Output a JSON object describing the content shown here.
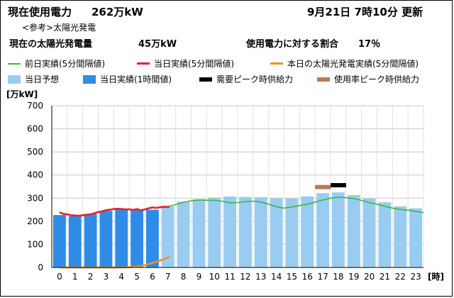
{
  "header": {
    "title": "現在使用電力",
    "current_usage": "262万kW",
    "date_time": "9月21日 7時10分 更新",
    "reference_label": "<参考>太陽光発電",
    "solar_label": "現在の太陽光発電量",
    "solar_value": "45万kW",
    "ratio_label": "使用電力に対する割合",
    "ratio_value": "17％"
  },
  "legend": {
    "items": [
      {
        "label": "前日実績(5分間隔値)",
        "color": "#3cb83c",
        "shape": "line"
      },
      {
        "label": "当日実績(5分間隔値)",
        "color": "#e8202a",
        "shape": "line"
      },
      {
        "label": "本日の太陽光発電実績(5分間隔値)",
        "color": "#f4901e",
        "shape": "line"
      },
      {
        "label": "当日予想",
        "color": "#99ccf0",
        "shape": "box"
      },
      {
        "label": "当日実績(1時間値)",
        "color": "#2f8ce6",
        "shape": "box"
      },
      {
        "label": "需要ピーク時供給力",
        "color": "#000000",
        "shape": "line"
      },
      {
        "label": "使用率ピーク時供給力",
        "color": "#b87a5a",
        "shape": "line"
      }
    ]
  },
  "chart_data": {
    "type": "bar",
    "ylabel": "[万kW]",
    "xlabel": "[時]",
    "ylim": [
      0,
      700
    ],
    "yticks": [
      0,
      100,
      200,
      300,
      400,
      500,
      600,
      700
    ],
    "grid": true,
    "categories": [
      "0",
      "1",
      "2",
      "3",
      "4",
      "5",
      "6",
      "7",
      "8",
      "9",
      "10",
      "11",
      "12",
      "13",
      "14",
      "15",
      "16",
      "17",
      "18",
      "19",
      "20",
      "21",
      "22",
      "23"
    ],
    "series": [
      {
        "name": "当日実績(1時間値)",
        "color": "#2f8ce6",
        "values": [
          227,
          222,
          232,
          245,
          250,
          249,
          250,
          null,
          null,
          null,
          null,
          null,
          null,
          null,
          null,
          null,
          null,
          null,
          null,
          null,
          null,
          null,
          null,
          null
        ]
      },
      {
        "name": "当日予想",
        "color": "#99ccf0",
        "values": [
          null,
          null,
          null,
          null,
          null,
          null,
          null,
          264,
          285,
          296,
          303,
          307,
          305,
          304,
          300,
          299,
          307,
          322,
          325,
          313,
          299,
          282,
          265,
          256
        ]
      },
      {
        "name": "前日実績(5分間隔値)",
        "color": "#3cb83c",
        "x": [
          6.5,
          7,
          7.5,
          8,
          8.5,
          9,
          9.5,
          10,
          10.5,
          11,
          11.5,
          12,
          12.5,
          13,
          13.5,
          14,
          14.5,
          15,
          15.5,
          16,
          16.5,
          17,
          17.5,
          18,
          18.5,
          19,
          19.5,
          20,
          20.5,
          21,
          21.5,
          22,
          22.5,
          23,
          23.5
        ],
        "values": [
          258,
          264,
          272,
          282,
          289,
          292,
          291,
          290,
          287,
          280,
          281,
          285,
          287,
          283,
          274,
          263,
          257,
          262,
          268,
          274,
          283,
          292,
          300,
          304,
          302,
          298,
          290,
          281,
          274,
          265,
          257,
          251,
          248,
          243,
          237
        ]
      },
      {
        "name": "当日実績(5分間隔値)",
        "color": "#e8202a",
        "x": [
          0,
          0.25,
          0.5,
          0.75,
          1,
          1.25,
          1.5,
          1.75,
          2,
          2.25,
          2.5,
          2.75,
          3,
          3.25,
          3.5,
          3.75,
          4,
          4.25,
          4.5,
          4.75,
          5,
          5.25,
          5.5,
          5.75,
          6,
          6.25,
          6.5,
          6.75,
          7.1
        ],
        "values": [
          239,
          232,
          230,
          226,
          225,
          224,
          226,
          228,
          230,
          235,
          240,
          243,
          248,
          250,
          253,
          254,
          253,
          251,
          252,
          249,
          253,
          247,
          251,
          256,
          260,
          258,
          261,
          263,
          262
        ]
      },
      {
        "name": "本日の太陽光発電実績(5分間隔値)",
        "color": "#f4901e",
        "x": [
          0,
          1,
          2,
          3,
          4,
          4.8,
          5.2,
          5.6,
          6,
          6.4,
          6.8,
          7.1
        ],
        "values": [
          0,
          0,
          0,
          0,
          0,
          2,
          5,
          12,
          20,
          28,
          38,
          45
        ]
      },
      {
        "name": "需要ピーク時供給力",
        "color": "#000000",
        "x": [
          18
        ],
        "values": [
          356
        ]
      },
      {
        "name": "使用率ピーク時供給力",
        "color": "#b87a5a",
        "x": [
          17
        ],
        "values": [
          348
        ]
      }
    ]
  }
}
